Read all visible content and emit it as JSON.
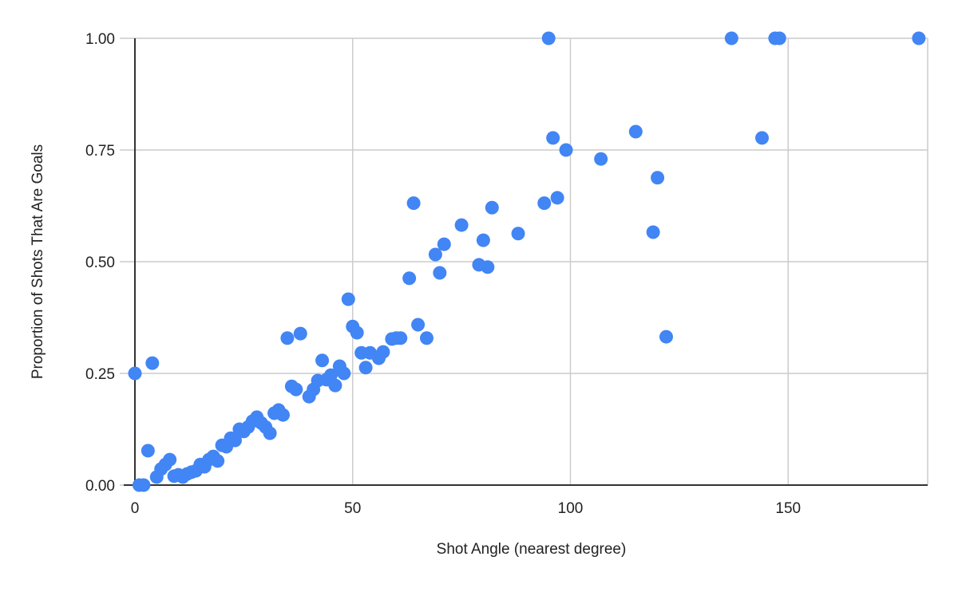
{
  "chart_data": {
    "type": "scatter",
    "title": "",
    "xlabel": "Shot Angle (nearest degree)",
    "ylabel": "Proportion of Shots That Are Goals",
    "xlim": [
      0,
      182
    ],
    "ylim": [
      0,
      1
    ],
    "xticks": [
      0,
      50,
      100,
      150
    ],
    "yticks": [
      "0.00",
      "0.25",
      "0.50",
      "0.75",
      "1.00"
    ],
    "grid": true,
    "legend": null,
    "marker_color": "#4285F4",
    "series": [
      {
        "name": "Proportion of Shots That Are Goals",
        "points": [
          [
            0,
            0.25
          ],
          [
            1,
            0
          ],
          [
            2,
            0
          ],
          [
            3,
            0.077
          ],
          [
            4,
            0.273
          ],
          [
            5,
            0.018
          ],
          [
            6,
            0.036
          ],
          [
            7,
            0.046
          ],
          [
            8,
            0.057
          ],
          [
            9,
            0.02
          ],
          [
            10,
            0.023
          ],
          [
            11,
            0.018
          ],
          [
            12,
            0.025
          ],
          [
            13,
            0.029
          ],
          [
            14,
            0.032
          ],
          [
            15,
            0.046
          ],
          [
            16,
            0.041
          ],
          [
            17,
            0.057
          ],
          [
            18,
            0.064
          ],
          [
            19,
            0.054
          ],
          [
            20,
            0.089
          ],
          [
            21,
            0.086
          ],
          [
            22,
            0.105
          ],
          [
            23,
            0.1
          ],
          [
            24,
            0.125
          ],
          [
            25,
            0.12
          ],
          [
            26,
            0.13
          ],
          [
            27,
            0.143
          ],
          [
            28,
            0.152
          ],
          [
            29,
            0.139
          ],
          [
            30,
            0.13
          ],
          [
            31,
            0.116
          ],
          [
            32,
            0.161
          ],
          [
            33,
            0.168
          ],
          [
            34,
            0.157
          ],
          [
            35,
            0.329
          ],
          [
            36,
            0.221
          ],
          [
            37,
            0.214
          ],
          [
            38,
            0.339
          ],
          [
            40,
            0.198
          ],
          [
            41,
            0.214
          ],
          [
            42,
            0.234
          ],
          [
            43,
            0.279
          ],
          [
            44,
            0.236
          ],
          [
            45,
            0.246
          ],
          [
            46,
            0.223
          ],
          [
            47,
            0.266
          ],
          [
            48,
            0.25
          ],
          [
            49,
            0.416
          ],
          [
            50,
            0.355
          ],
          [
            51,
            0.341
          ],
          [
            52,
            0.296
          ],
          [
            53,
            0.263
          ],
          [
            54,
            0.296
          ],
          [
            56,
            0.284
          ],
          [
            57,
            0.298
          ],
          [
            59,
            0.327
          ],
          [
            60,
            0.329
          ],
          [
            61,
            0.329
          ],
          [
            63,
            0.463
          ],
          [
            64,
            0.631
          ],
          [
            65,
            0.359
          ],
          [
            67,
            0.329
          ],
          [
            69,
            0.516
          ],
          [
            70,
            0.475
          ],
          [
            71,
            0.539
          ],
          [
            75,
            0.582
          ],
          [
            79,
            0.493
          ],
          [
            80,
            0.548
          ],
          [
            81,
            0.488
          ],
          [
            82,
            0.621
          ],
          [
            88,
            0.563
          ],
          [
            94,
            0.631
          ],
          [
            95,
            1.0
          ],
          [
            96,
            0.777
          ],
          [
            97,
            0.643
          ],
          [
            99,
            0.75
          ],
          [
            107,
            0.73
          ],
          [
            115,
            0.791
          ],
          [
            119,
            0.566
          ],
          [
            120,
            0.688
          ],
          [
            122,
            0.332
          ],
          [
            137,
            1.0
          ],
          [
            144,
            0.777
          ],
          [
            147,
            1.0
          ],
          [
            148,
            1.0
          ],
          [
            180,
            1.0
          ]
        ]
      }
    ]
  }
}
